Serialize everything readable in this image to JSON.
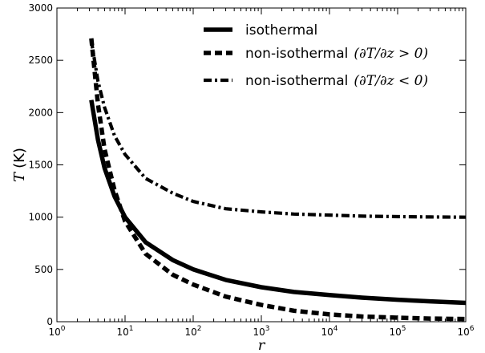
{
  "chart_data": {
    "type": "line",
    "title": "",
    "xlabel": "r",
    "ylabel": "T",
    "ylabel_unit": "(K)",
    "xscale": "log",
    "xlim": [
      1,
      1000000
    ],
    "ylim": [
      0,
      3000
    ],
    "x_ticks": [
      {
        "base": "10",
        "exp": "0",
        "value": 1
      },
      {
        "base": "10",
        "exp": "1",
        "value": 10
      },
      {
        "base": "10",
        "exp": "2",
        "value": 100
      },
      {
        "base": "10",
        "exp": "3",
        "value": 1000
      },
      {
        "base": "10",
        "exp": "4",
        "value": 10000
      },
      {
        "base": "10",
        "exp": "5",
        "value": 100000
      },
      {
        "base": "10",
        "exp": "6",
        "value": 1000000
      }
    ],
    "y_ticks": [
      "0",
      "500",
      "1000",
      "1500",
      "2000",
      "2500",
      "3000"
    ],
    "grid": false,
    "legend_position": "top-right",
    "series": [
      {
        "name": "isothermal",
        "style": "solid",
        "color": "#000000",
        "points": [
          [
            3.2,
            2120
          ],
          [
            4,
            1740
          ],
          [
            5,
            1470
          ],
          [
            7,
            1200
          ],
          [
            10,
            1000
          ],
          [
            20,
            760
          ],
          [
            50,
            590
          ],
          [
            100,
            500
          ],
          [
            300,
            400
          ],
          [
            1000,
            330
          ],
          [
            3000,
            285
          ],
          [
            10000,
            255
          ],
          [
            30000,
            230
          ],
          [
            100000,
            210
          ],
          [
            300000,
            195
          ],
          [
            1000000,
            180
          ]
        ]
      },
      {
        "name": "non-isothermal",
        "label_math": "(∂T/∂z > 0)",
        "style": "dashed",
        "color": "#000000",
        "points": [
          [
            3.2,
            2710
          ],
          [
            4,
            2080
          ],
          [
            5,
            1650
          ],
          [
            7,
            1260
          ],
          [
            10,
            960
          ],
          [
            20,
            650
          ],
          [
            50,
            450
          ],
          [
            100,
            355
          ],
          [
            300,
            240
          ],
          [
            1000,
            160
          ],
          [
            3000,
            105
          ],
          [
            10000,
            70
          ],
          [
            30000,
            50
          ],
          [
            100000,
            38
          ],
          [
            300000,
            30
          ],
          [
            1000000,
            25
          ]
        ]
      },
      {
        "name": "non-isothermal",
        "label_math": "(∂T/∂z < 0)",
        "style": "dashdot",
        "color": "#000000",
        "points": [
          [
            3.2,
            2690
          ],
          [
            4,
            2300
          ],
          [
            5,
            2050
          ],
          [
            7,
            1780
          ],
          [
            10,
            1600
          ],
          [
            20,
            1370
          ],
          [
            50,
            1230
          ],
          [
            100,
            1150
          ],
          [
            300,
            1080
          ],
          [
            1000,
            1050
          ],
          [
            3000,
            1030
          ],
          [
            10000,
            1020
          ],
          [
            30000,
            1010
          ],
          [
            100000,
            1005
          ],
          [
            300000,
            1002
          ],
          [
            1000000,
            1000
          ]
        ]
      }
    ]
  }
}
